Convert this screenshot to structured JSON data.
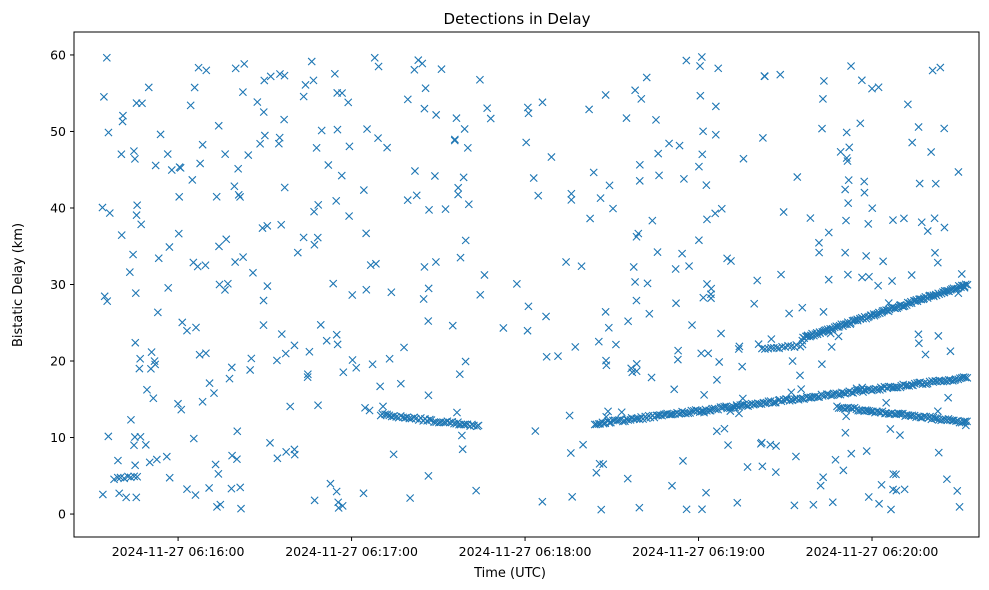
{
  "chart_data": {
    "type": "scatter",
    "title": "Detections in Delay",
    "xlabel": "Time (UTC)",
    "ylabel": "Bistatic Delay (km)",
    "x_unit": "seconds after 2024-11-27 06:15:00",
    "xlim": [
      24,
      337
    ],
    "ylim": [
      -3.0,
      63.0
    ],
    "x_ticks": [
      {
        "value": 60,
        "label": "2024-11-27 06:16:00"
      },
      {
        "value": 120,
        "label": "2024-11-27 06:17:00"
      },
      {
        "value": 180,
        "label": "2024-11-27 06:18:00"
      },
      {
        "value": 240,
        "label": "2024-11-27 06:19:00"
      },
      {
        "value": 300,
        "label": "2024-11-27 06:20:00"
      }
    ],
    "y_ticks": [
      0,
      10,
      20,
      30,
      40,
      50,
      60
    ],
    "marker": "x",
    "color": "#1f77b4",
    "grid": false,
    "tracks": [
      {
        "t0": 130,
        "t1": 164,
        "y0": 13.0,
        "y1": 11.5,
        "n": 45
      },
      {
        "t0": 204,
        "t1": 333,
        "y0": 11.8,
        "y1": 17.8,
        "n": 200
      },
      {
        "t0": 288,
        "t1": 333,
        "y0": 14.0,
        "y1": 12.0,
        "n": 70
      },
      {
        "t0": 262,
        "t1": 276,
        "y0": 21.5,
        "y1": 22.0,
        "n": 15
      },
      {
        "t0": 276,
        "t1": 333,
        "y0": 23.0,
        "y1": 30.0,
        "n": 120
      },
      {
        "t0": 38,
        "t1": 46,
        "y0": 4.7,
        "y1": 5.0,
        "n": 8
      }
    ],
    "clutter": {
      "t_range": [
        33,
        333
      ],
      "y_range": [
        0.5,
        59.8
      ],
      "n": 560,
      "gap": [
        166,
        204
      ],
      "gap_n": 30
    }
  }
}
